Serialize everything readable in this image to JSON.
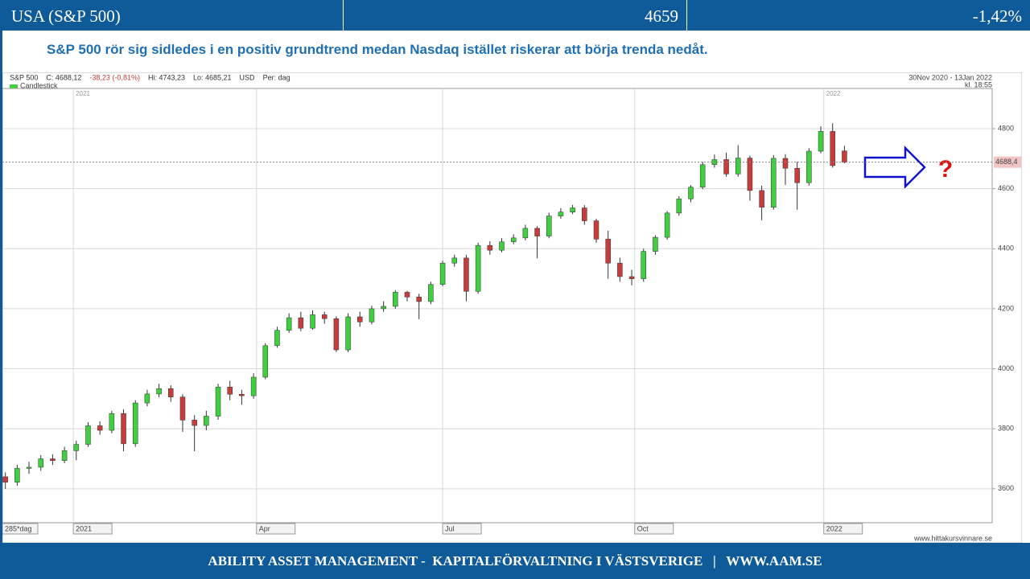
{
  "header": {
    "title": "USA (S&P 500)",
    "price": "4659",
    "change": "-1,42%"
  },
  "subtitle": "S&P 500 rör sig sidledes i en positiv grundtrend  medan Nasdaq  istället riskerar  att börja  trenda nedåt.",
  "chart_data": {
    "type": "candlestick",
    "info": [
      "S&P 500",
      "C: 4688,12",
      "-38,23 (-0,81%)",
      "Hi: 4743,23",
      "Lo: 4685,21",
      "USD",
      "Per: dag"
    ],
    "legend": "Candlestick",
    "period": "30Nov 2020 - 13Jan 2022",
    "time": "kl. 18:55",
    "period_label": "285*dag",
    "source": "www.hittakursvinnare.se",
    "annotation": "?",
    "up_color": "#3fcf3f",
    "down_color": "#c83c3c",
    "last_price": {
      "value": 4688.4,
      "label": "4688,4"
    },
    "xlim": [
      -1,
      334
    ],
    "ylim": [
      3487,
      4934
    ],
    "yticks": [
      3600,
      3800,
      4000,
      4200,
      4400,
      4600,
      4800
    ],
    "xticks": [
      {
        "value": 23,
        "label": "2021"
      },
      {
        "value": 85,
        "label": "Apr"
      },
      {
        "value": 148,
        "label": "Jul"
      },
      {
        "value": 213,
        "label": "Oct"
      },
      {
        "value": 277,
        "label": "2022"
      }
    ],
    "year_markers": [
      {
        "value": 23,
        "label": "2021"
      },
      {
        "value": 277,
        "label": "2022"
      }
    ],
    "grid": true,
    "x": [
      0,
      4,
      8,
      12,
      16,
      20,
      24,
      28,
      32,
      36,
      40,
      44,
      48,
      52,
      56,
      60,
      64,
      68,
      72,
      76,
      80,
      84,
      88,
      92,
      96,
      100,
      104,
      108,
      112,
      116,
      120,
      124,
      128,
      132,
      136,
      140,
      144,
      148,
      152,
      156,
      160,
      164,
      168,
      172,
      176,
      180,
      184,
      188,
      192,
      196,
      200,
      204,
      208,
      212,
      216,
      220,
      224,
      228,
      232,
      236,
      240,
      244,
      248,
      252,
      256,
      260,
      264,
      268,
      272,
      276,
      280,
      284
    ],
    "open": [
      3640,
      3622,
      3668,
      3672,
      3700,
      3694,
      3727,
      3748,
      3810,
      3795,
      3851,
      3750,
      3886,
      3916,
      3934,
      3906,
      3829,
      3811,
      3842,
      3939,
      3915,
      3910,
      3972,
      4077,
      4128,
      4170,
      4135,
      4180,
      4167,
      4063,
      4173,
      4156,
      4200,
      4208,
      4255,
      4239,
      4224,
      4281,
      4352,
      4369,
      4258,
      4411,
      4395,
      4423,
      4436,
      4468,
      4442,
      4509,
      4522,
      4536,
      4493,
      4432,
      4352,
      4307,
      4300,
      4391,
      4438,
      4519,
      4566,
      4605,
      4680,
      4697,
      4649,
      4702,
      4594,
      4538,
      4701,
      4668,
      4620,
      4725,
      4791,
      4726
    ],
    "high": [
      3655,
      3680,
      3690,
      3712,
      3715,
      3740,
      3760,
      3822,
      3825,
      3860,
      3865,
      3895,
      3930,
      3950,
      3945,
      3915,
      3845,
      3860,
      3950,
      3960,
      3930,
      3985,
      4085,
      4140,
      4185,
      4190,
      4195,
      4190,
      4175,
      4185,
      4190,
      4210,
      4225,
      4262,
      4260,
      4250,
      4290,
      4360,
      4380,
      4380,
      4420,
      4425,
      4435,
      4448,
      4480,
      4475,
      4520,
      4535,
      4546,
      4545,
      4500,
      4460,
      4370,
      4330,
      4400,
      4445,
      4525,
      4575,
      4612,
      4690,
      4714,
      4720,
      4745,
      4710,
      4610,
      4712,
      4715,
      4690,
      4735,
      4808,
      4818,
      4743
    ],
    "low": [
      3600,
      3610,
      3650,
      3660,
      3680,
      3685,
      3695,
      3740,
      3780,
      3785,
      3725,
      3740,
      3875,
      3905,
      3890,
      3790,
      3725,
      3795,
      3830,
      3895,
      3880,
      3900,
      3965,
      4070,
      4120,
      4125,
      4130,
      4150,
      4056,
      4055,
      4140,
      4148,
      4190,
      4200,
      4225,
      4165,
      4215,
      4275,
      4340,
      4225,
      4250,
      4380,
      4388,
      4415,
      4428,
      4368,
      4435,
      4500,
      4515,
      4480,
      4420,
      4300,
      4290,
      4278,
      4290,
      4380,
      4430,
      4510,
      4555,
      4598,
      4670,
      4640,
      4640,
      4560,
      4495,
      4530,
      4612,
      4530,
      4610,
      4718,
      4670,
      4685
    ],
    "close": [
      3622,
      3668,
      3672,
      3700,
      3694,
      3727,
      3748,
      3810,
      3795,
      3851,
      3750,
      3886,
      3916,
      3934,
      3906,
      3829,
      3811,
      3842,
      3939,
      3915,
      3910,
      3972,
      4077,
      4128,
      4170,
      4135,
      4180,
      4167,
      4063,
      4173,
      4156,
      4200,
      4208,
      4255,
      4239,
      4224,
      4281,
      4352,
      4369,
      4258,
      4411,
      4395,
      4423,
      4436,
      4468,
      4442,
      4509,
      4522,
      4536,
      4493,
      4432,
      4352,
      4307,
      4300,
      4391,
      4438,
      4519,
      4566,
      4605,
      4680,
      4697,
      4649,
      4702,
      4594,
      4538,
      4701,
      4668,
      4620,
      4725,
      4791,
      4677,
      4688
    ]
  },
  "footer": "ABILITY ASSET MANAGEMENT -  KAPITALFÖRVALTNING I VÄSTSVERIGE   |   WWW.AAM.SE"
}
